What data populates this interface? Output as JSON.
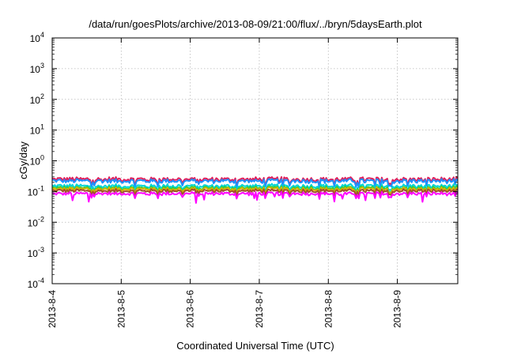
{
  "chart_data": {
    "type": "line",
    "title": "/data/run/goesPlots/archive/2013-08-09/21:00/flux/../bryn/5daysEarth.plot",
    "xlabel": "Coordinated Universal Time (UTC)",
    "ylabel": "cGy/day",
    "yscale": "log",
    "ylim_exponents": [
      -4,
      4
    ],
    "y_tick_labels": [
      {
        "base": "10",
        "exp": "4"
      },
      {
        "base": "10",
        "exp": "3"
      },
      {
        "base": "10",
        "exp": "2"
      },
      {
        "base": "10",
        "exp": "1"
      },
      {
        "base": "10",
        "exp": "0"
      },
      {
        "base": "10",
        "exp": "-1"
      },
      {
        "base": "10",
        "exp": "-2"
      },
      {
        "base": "10",
        "exp": "-3"
      },
      {
        "base": "10",
        "exp": "-4"
      }
    ],
    "x_tick_labels": [
      "2013-8-4",
      "2013-8-5",
      "2013-8-6",
      "2013-8-7",
      "2013-8-8",
      "2013-8-9"
    ],
    "xlim": [
      "2013-08-04T00:00",
      "2013-08-09T21:00"
    ],
    "grid": true,
    "series": [
      {
        "color": "#e01e5a",
        "typical_value": 0.25
      },
      {
        "color": "#1e90ff",
        "typical_value": 0.22
      },
      {
        "color": "#00d5d5",
        "typical_value": 0.15
      },
      {
        "color": "#2ecc40",
        "typical_value": 0.13
      },
      {
        "color": "#d6b400",
        "typical_value": 0.12
      },
      {
        "color": "#a0522d",
        "typical_value": 0.105
      },
      {
        "color": "#ff00ff",
        "typical_value": 0.085
      }
    ]
  }
}
